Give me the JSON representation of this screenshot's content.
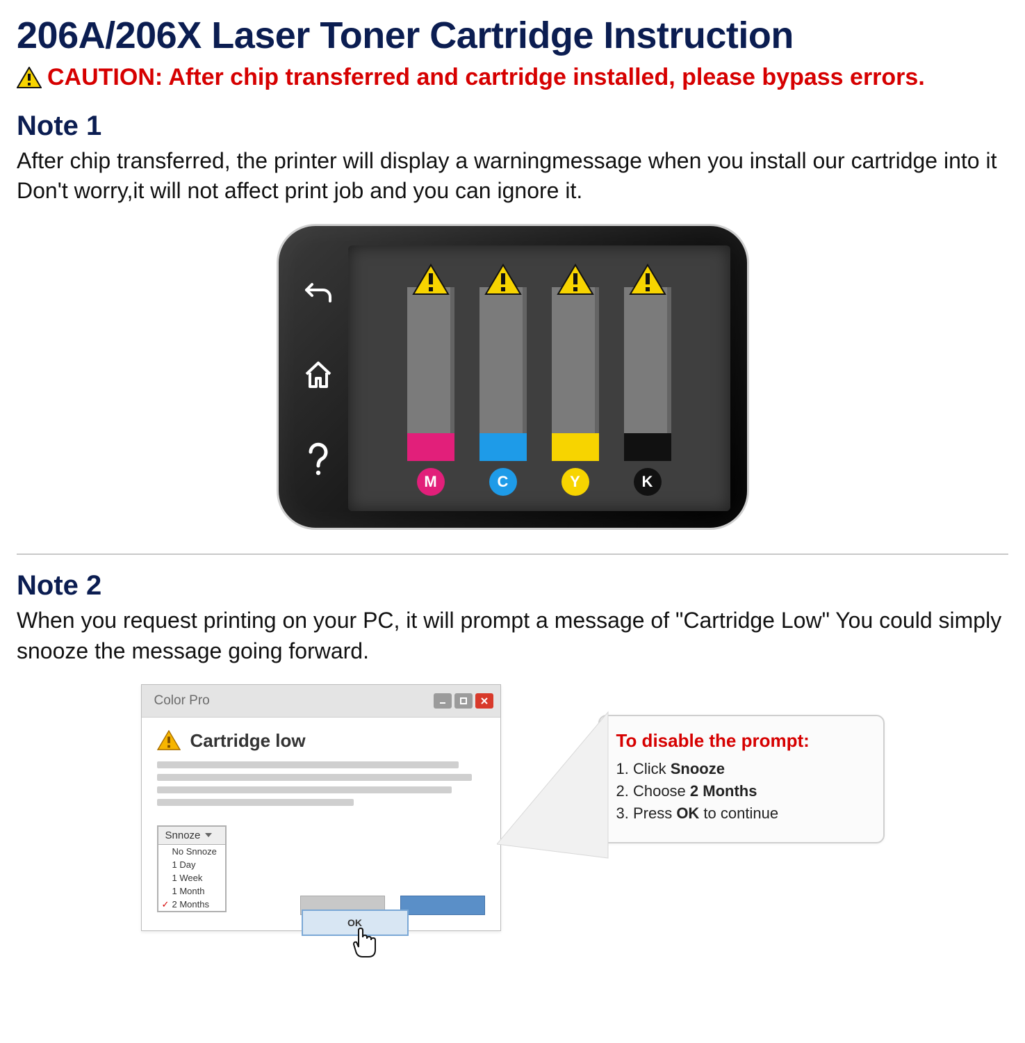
{
  "title": "206A/206X Laser Toner Cartridge Instruction",
  "caution": "CAUTION: After chip transferred and cartridge installed, please bypass errors.",
  "note1": {
    "heading": "Note 1",
    "body": "After chip transferred, the printer will display a warningmessage when you install our cartridge into it Don't worry,it will not affect print job and you can ignore it."
  },
  "device": {
    "bg_gradient": [
      "#3a3a3a",
      "#141414",
      "#000000"
    ],
    "screen_bg": "#3f3f3f",
    "bar_bg": "#7b7b7b",
    "sidebar_icons": [
      "back-icon",
      "home-icon",
      "help-icon"
    ],
    "toners": [
      {
        "label": "M",
        "color": "#e21f7a",
        "fill_height": 40
      },
      {
        "label": "C",
        "color": "#1e9be8",
        "fill_height": 40
      },
      {
        "label": "Y",
        "color": "#f7d400",
        "fill_height": 40
      },
      {
        "label": "K",
        "color": "#111111",
        "fill_height": 40
      }
    ],
    "warning_triangle_color": "#f7d400"
  },
  "note2": {
    "heading": "Note 2",
    "body": "When you request printing on your PC, it will prompt a message of \"Cartridge Low\" You could simply snooze the message going forward."
  },
  "dialog": {
    "title": "Color Pro",
    "alert_text": "Cartridge low",
    "snooze_label": "Snnoze",
    "snooze_options": [
      "No Snnoze",
      "1 Day",
      "1 Week",
      "1 Month",
      "2 Months"
    ],
    "snooze_checked_index": 4,
    "ok_label": "OK",
    "button_colors": {
      "gray": "#c8c8c8",
      "blue": "#5a8fc8",
      "ok_zoom": "#d8e6f3",
      "close": "#d83a2b"
    }
  },
  "tips": {
    "title": "To disable the prompt:",
    "lines": [
      {
        "prefix": "1. Click ",
        "bold": "Snooze",
        "suffix": ""
      },
      {
        "prefix": "2. Choose ",
        "bold": "2 Months",
        "suffix": ""
      },
      {
        "prefix": "3. Press ",
        "bold": "OK",
        "suffix": " to continue"
      }
    ]
  },
  "colors": {
    "title_navy": "#0b1d51",
    "caution_red": "#d60000",
    "divider": "#c9c9c9"
  }
}
